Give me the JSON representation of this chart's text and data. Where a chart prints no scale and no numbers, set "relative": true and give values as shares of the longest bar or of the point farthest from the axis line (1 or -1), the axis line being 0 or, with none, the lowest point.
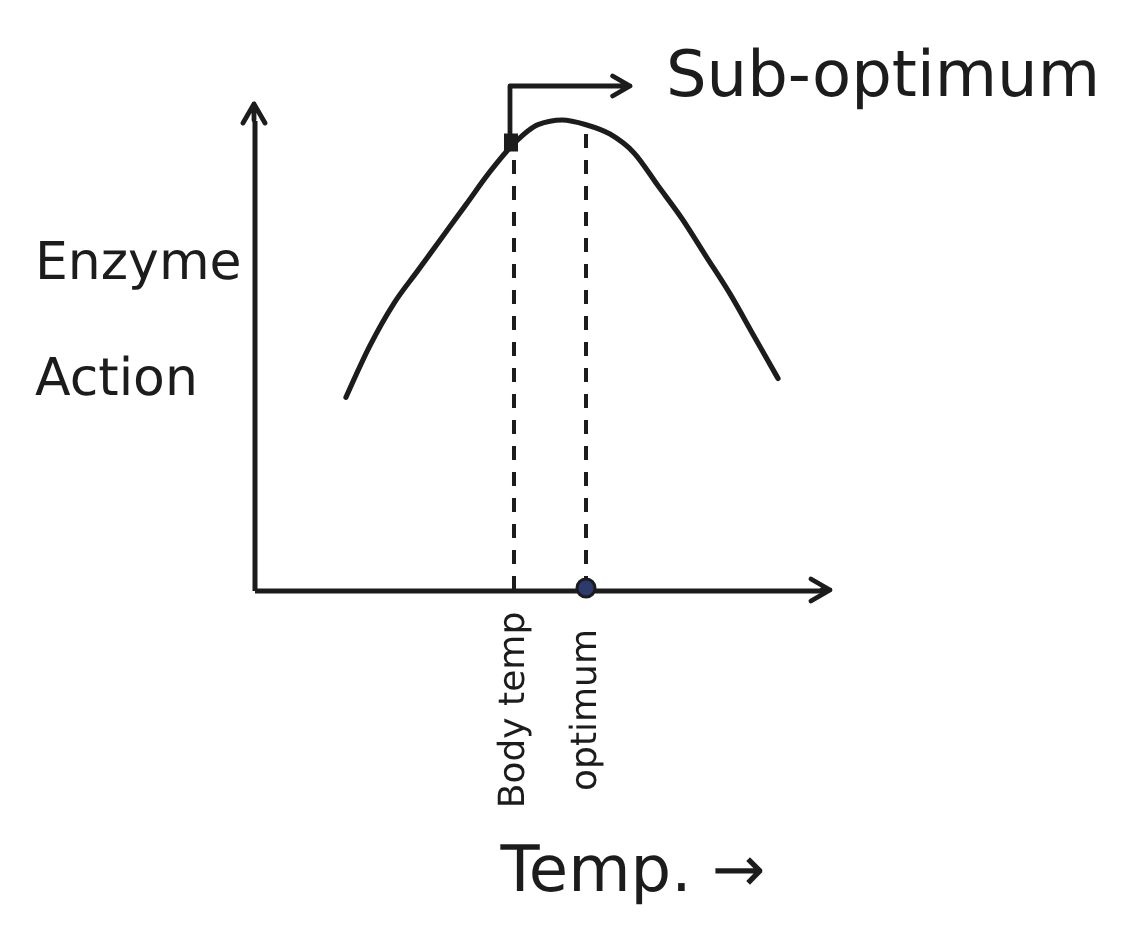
{
  "chart_data": {
    "type": "line",
    "relative": true,
    "xlabel": "Temp. →",
    "ylabel": "Enzyme Action",
    "categories": [
      null,
      null,
      null,
      null,
      null,
      null,
      null,
      null,
      null,
      null,
      "Body temp",
      null,
      null,
      "optimum",
      null,
      null,
      null,
      null,
      null,
      null,
      null,
      null,
      null
    ],
    "values": [
      null,
      null,
      null,
      0.41,
      0.52,
      0.61,
      0.68,
      0.75,
      0.82,
      0.89,
      0.95,
      0.99,
      1,
      0.99,
      0.97,
      0.93,
      0.86,
      0.79,
      0.71,
      0.63,
      0.54,
      0.45,
      null
    ],
    "color": "#1c1c1c",
    "line_style": "solid",
    "ref_lines": [
      {
        "axis": "x",
        "value": "Body temp",
        "line_style": "dashed"
      },
      {
        "axis": "x",
        "value": "optimum",
        "line_style": "dashed"
      }
    ],
    "annotations": [
      {
        "text": "Sub-optimum",
        "x": "Body temp",
        "y": 0.95
      }
    ]
  }
}
